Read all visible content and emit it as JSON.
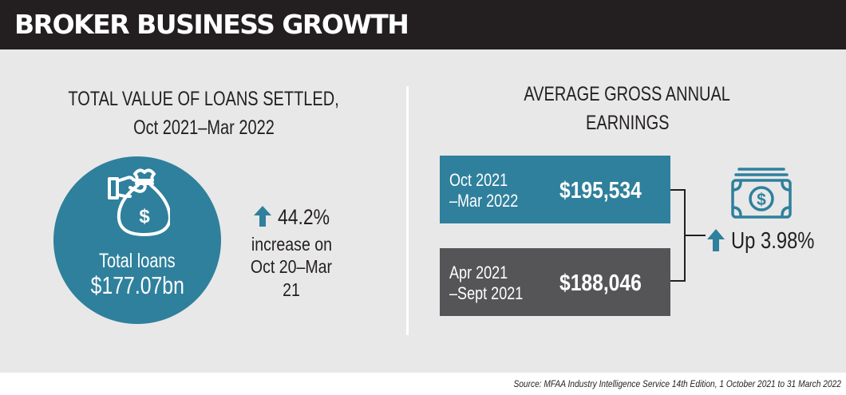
{
  "banner": {
    "title": "BROKER BUSINESS GROWTH"
  },
  "left": {
    "heading_line1": "TOTAL VALUE OF LOANS SETTLED,",
    "heading_line2": "Oct 2021–Mar 2022",
    "circle_label": "Total loans",
    "circle_value": "$177.07bn",
    "bag_icon": "money-bag-icon",
    "change_value": "44.2%",
    "change_text_line1": "increase on",
    "change_text_line2": "Oct 20–Mar 21"
  },
  "right": {
    "heading_line1": "AVERAGE GROSS ANNUAL",
    "heading_line2": "EARNINGS",
    "periods": [
      {
        "line1": "Oct 2021",
        "line2": "–Mar 2022",
        "value": "$195,534"
      },
      {
        "line1": "Apr 2021",
        "line2": "–Sept 2021",
        "value": "$188,046"
      }
    ],
    "change_label": "Up 3.98%",
    "cash_icon": "banknote-icon"
  },
  "source": "Source: MFAA Industry Intelligence Service 14th Edition, 1 October 2021 to 31 March 2022",
  "colors": {
    "teal": "#2f809c",
    "dark_grey": "#555557",
    "banner": "#231f20",
    "panel": "#e8e8e8"
  }
}
